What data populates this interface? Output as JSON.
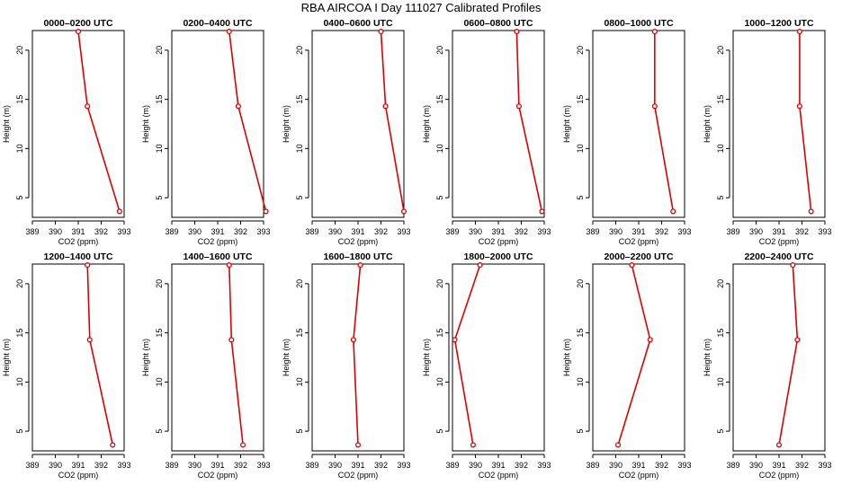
{
  "title": "RBA AIRCOA I  Day 111027  Calibrated Profiles",
  "colors": {
    "line": "#dd0000",
    "axis": "#000000"
  },
  "chart_data": [
    {
      "type": "line",
      "title": "0000–0200 UTC",
      "xlabel": "CO2 (ppm)",
      "ylabel": "Height (m)",
      "xlim": [
        389,
        393
      ],
      "ylim": [
        3,
        22
      ],
      "xticks": [
        389,
        390,
        391,
        392,
        393
      ],
      "yticks": [
        5,
        10,
        15,
        20
      ],
      "x": [
        392.8,
        391.4,
        391.0
      ],
      "y": [
        3.6,
        14.3,
        21.9
      ]
    },
    {
      "type": "line",
      "title": "0200–0400 UTC",
      "xlabel": "CO2 (ppm)",
      "ylabel": "Height (m)",
      "xlim": [
        389,
        393
      ],
      "ylim": [
        3,
        22
      ],
      "xticks": [
        389,
        390,
        391,
        392,
        393
      ],
      "yticks": [
        5,
        10,
        15,
        20
      ],
      "x": [
        393.1,
        391.9,
        391.5
      ],
      "y": [
        3.6,
        14.3,
        21.9
      ]
    },
    {
      "type": "line",
      "title": "0400–0600 UTC",
      "xlabel": "CO2 (ppm)",
      "ylabel": "Height (m)",
      "xlim": [
        389,
        393
      ],
      "ylim": [
        3,
        22
      ],
      "xticks": [
        389,
        390,
        391,
        392,
        393
      ],
      "yticks": [
        5,
        10,
        15,
        20
      ],
      "x": [
        393.0,
        392.2,
        392.0
      ],
      "y": [
        3.6,
        14.3,
        21.9
      ]
    },
    {
      "type": "line",
      "title": "0600–0800 UTC",
      "xlabel": "CO2 (ppm)",
      "ylabel": "Height (m)",
      "xlim": [
        389,
        393
      ],
      "ylim": [
        3,
        22
      ],
      "xticks": [
        389,
        390,
        391,
        392,
        393
      ],
      "yticks": [
        5,
        10,
        15,
        20
      ],
      "x": [
        392.9,
        391.9,
        391.8
      ],
      "y": [
        3.6,
        14.3,
        21.9
      ]
    },
    {
      "type": "line",
      "title": "0800–1000 UTC",
      "xlabel": "CO2 (ppm)",
      "ylabel": "Height (m)",
      "xlim": [
        389,
        393
      ],
      "ylim": [
        3,
        22
      ],
      "xticks": [
        389,
        390,
        391,
        392,
        393
      ],
      "yticks": [
        5,
        10,
        15,
        20
      ],
      "x": [
        392.5,
        391.7,
        391.7
      ],
      "y": [
        3.6,
        14.3,
        21.9
      ]
    },
    {
      "type": "line",
      "title": "1000–1200 UTC",
      "xlabel": "CO2 (ppm)",
      "ylabel": "Height (m)",
      "xlim": [
        389,
        393
      ],
      "ylim": [
        3,
        22
      ],
      "xticks": [
        389,
        390,
        391,
        392,
        393
      ],
      "yticks": [
        5,
        10,
        15,
        20
      ],
      "x": [
        392.4,
        391.9,
        391.9
      ],
      "y": [
        3.6,
        14.3,
        21.9
      ]
    },
    {
      "type": "line",
      "title": "1200–1400 UTC",
      "xlabel": "CO2 (ppm)",
      "ylabel": "Height (m)",
      "xlim": [
        389,
        393
      ],
      "ylim": [
        3,
        22
      ],
      "xticks": [
        389,
        390,
        391,
        392,
        393
      ],
      "yticks": [
        5,
        10,
        15,
        20
      ],
      "x": [
        392.5,
        391.5,
        391.4
      ],
      "y": [
        3.6,
        14.3,
        21.9
      ]
    },
    {
      "type": "line",
      "title": "1400–1600 UTC",
      "xlabel": "CO2 (ppm)",
      "ylabel": "Height (m)",
      "xlim": [
        389,
        393
      ],
      "ylim": [
        3,
        22
      ],
      "xticks": [
        389,
        390,
        391,
        392,
        393
      ],
      "yticks": [
        5,
        10,
        15,
        20
      ],
      "x": [
        392.1,
        391.6,
        391.5
      ],
      "y": [
        3.6,
        14.3,
        21.9
      ]
    },
    {
      "type": "line",
      "title": "1600–1800 UTC",
      "xlabel": "CO2 (ppm)",
      "ylabel": "Height (m)",
      "xlim": [
        389,
        393
      ],
      "ylim": [
        3,
        22
      ],
      "xticks": [
        389,
        390,
        391,
        392,
        393
      ],
      "yticks": [
        5,
        10,
        15,
        20
      ],
      "x": [
        391.0,
        390.8,
        391.1
      ],
      "y": [
        3.6,
        14.3,
        21.9
      ]
    },
    {
      "type": "line",
      "title": "1800–2000 UTC",
      "xlabel": "CO2 (ppm)",
      "ylabel": "Height (m)",
      "xlim": [
        389,
        393
      ],
      "ylim": [
        3,
        22
      ],
      "xticks": [
        389,
        390,
        391,
        392,
        393
      ],
      "yticks": [
        5,
        10,
        15,
        20
      ],
      "x": [
        389.9,
        389.1,
        390.2
      ],
      "y": [
        3.6,
        14.3,
        21.9
      ]
    },
    {
      "type": "line",
      "title": "2000–2200 UTC",
      "xlabel": "CO2 (ppm)",
      "ylabel": "Height (m)",
      "xlim": [
        389,
        393
      ],
      "ylim": [
        3,
        22
      ],
      "xticks": [
        389,
        390,
        391,
        392,
        393
      ],
      "yticks": [
        5,
        10,
        15,
        20
      ],
      "x": [
        390.1,
        391.5,
        390.7
      ],
      "y": [
        3.6,
        14.3,
        21.9
      ]
    },
    {
      "type": "line",
      "title": "2200–2400 UTC",
      "xlabel": "CO2 (ppm)",
      "ylabel": "Height (m)",
      "xlim": [
        389,
        393
      ],
      "ylim": [
        3,
        22
      ],
      "xticks": [
        389,
        390,
        391,
        392,
        393
      ],
      "yticks": [
        5,
        10,
        15,
        20
      ],
      "x": [
        391.0,
        391.8,
        391.6
      ],
      "y": [
        3.6,
        14.3,
        21.9
      ]
    }
  ]
}
